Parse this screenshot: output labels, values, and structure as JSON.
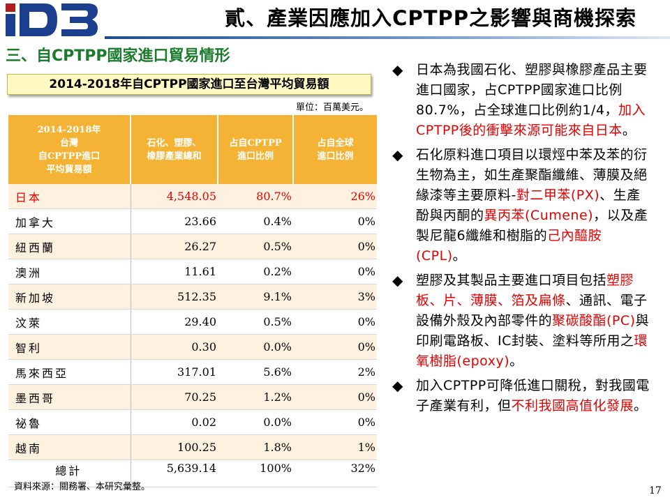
{
  "header": {
    "logo_text": "ID3",
    "title": "貳、產業因應加入CPTPP之影響與商機探索"
  },
  "section": {
    "heading": "三、自CPTPP國家進口貿易情形",
    "table_caption": "2014-2018年自CPTPP國家進口至台灣平均貿易額",
    "unit": "單位：百萬美元。"
  },
  "table": {
    "headers": [
      [
        "2014-2018年",
        "台灣",
        "自CPTPP進口",
        "平均貿易額"
      ],
      [
        "石化、塑膠、",
        "橡膠產業總和"
      ],
      [
        "占自CPTPP",
        "進口比例"
      ],
      [
        "占自全球",
        "進口比例"
      ]
    ],
    "rows": [
      {
        "country": "日本",
        "total": "4,548.05",
        "cptpp_share": "80.7%",
        "global_share": "26%",
        "highlight": true
      },
      {
        "country": "加拿大",
        "total": "23.66",
        "cptpp_share": "0.4%",
        "global_share": "0%"
      },
      {
        "country": "紐西蘭",
        "total": "26.27",
        "cptpp_share": "0.5%",
        "global_share": "0%"
      },
      {
        "country": "澳洲",
        "total": "11.61",
        "cptpp_share": "0.2%",
        "global_share": "0%"
      },
      {
        "country": "新加坡",
        "total": "512.35",
        "cptpp_share": "9.1%",
        "global_share": "3%"
      },
      {
        "country": "汶萊",
        "total": "29.40",
        "cptpp_share": "0.5%",
        "global_share": "0%"
      },
      {
        "country": "智利",
        "total": "0.30",
        "cptpp_share": "0.0%",
        "global_share": "0%"
      },
      {
        "country": "馬來西亞",
        "total": "317.01",
        "cptpp_share": "5.6%",
        "global_share": "2%"
      },
      {
        "country": "墨西哥",
        "total": "70.25",
        "cptpp_share": "1.2%",
        "global_share": "0%"
      },
      {
        "country": "祕魯",
        "total": "0.02",
        "cptpp_share": "0.0%",
        "global_share": "0%"
      },
      {
        "country": "越南",
        "total": "100.25",
        "cptpp_share": "1.8%",
        "global_share": "1%"
      }
    ],
    "total_row": {
      "country": "總計",
      "total": "5,639.14",
      "cptpp_share": "100%",
      "global_share": "32%"
    }
  },
  "source_note": "資料來源：關務署、本研究彙整。",
  "page_number": "17",
  "bullet_marker": "◆",
  "bullets": [
    [
      {
        "text": "日本為我國石化、塑膠與橡膠產品主要進口國家，占CPTPP國家進口比例80.7%，占全球進口比例約1/4，"
      },
      {
        "text": "加入CPTPP後的衝擊來源可能來自日本",
        "red": true
      },
      {
        "text": "。"
      }
    ],
    [
      {
        "text": "石化原料進口項目以環烴中苯及苯的衍生物為主，如生產聚酯纖維、薄膜及絕緣漆等主要原料-"
      },
      {
        "text": "對二甲苯(PX)",
        "red": true
      },
      {
        "text": "、生產酚與丙酮的"
      },
      {
        "text": "異丙苯(Cumene)",
        "red": true
      },
      {
        "text": "，以及產製尼龍6纖維和樹脂的"
      },
      {
        "text": "己內醯胺(CPL)",
        "red": true
      },
      {
        "text": "。"
      }
    ],
    [
      {
        "text": "塑膠及其製品主要進口項目包括"
      },
      {
        "text": "塑膠板、片、薄膜、箔及扁條",
        "red": true
      },
      {
        "text": "、通訊、電子設備外殼及內部零件的"
      },
      {
        "text": "聚碳酸酯(PC)",
        "red": true
      },
      {
        "text": "與印刷電路板、IC封裝、塗料等所用之"
      },
      {
        "text": "環氧樹脂(epoxy)",
        "red": true
      },
      {
        "text": "。"
      }
    ],
    [
      {
        "text": "加入CPTPP可降低進口關稅，對我國電子產業有利，但"
      },
      {
        "text": "不利我國高值化發展",
        "red": true
      },
      {
        "text": "。"
      }
    ]
  ]
}
